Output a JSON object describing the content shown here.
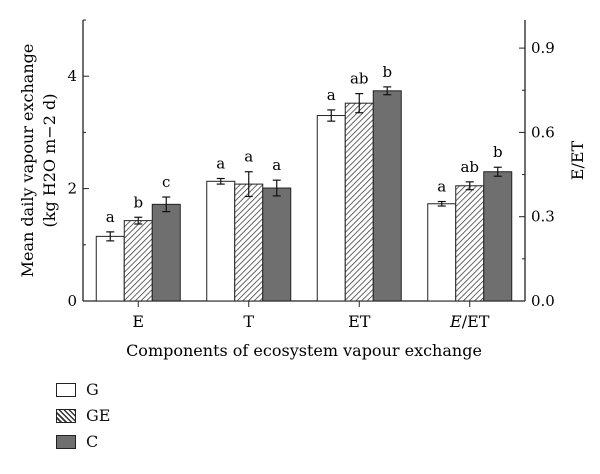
{
  "chart_data": {
    "type": "bar",
    "categories": [
      "E",
      "T",
      "ET",
      "E/ET"
    ],
    "category_italic_part": {
      "E/ET": "E"
    },
    "series": [
      {
        "name": "G",
        "fill": "white",
        "values": [
          1.15,
          2.13,
          3.3,
          1.73
        ],
        "errors": [
          0.08,
          0.05,
          0.1,
          0.04
        ],
        "letters": [
          "a",
          "a",
          "a",
          "a"
        ]
      },
      {
        "name": "GE",
        "fill": "hatched",
        "values": [
          1.43,
          2.08,
          3.52,
          2.05
        ],
        "errors": [
          0.06,
          0.22,
          0.17,
          0.07
        ],
        "letters": [
          "b",
          "a",
          "ab",
          "ab"
        ]
      },
      {
        "name": "C",
        "fill": "gray",
        "values": [
          1.72,
          2.01,
          3.74,
          2.3
        ],
        "errors": [
          0.13,
          0.14,
          0.07,
          0.08
        ],
        "letters": [
          "c",
          "a",
          "b",
          "b"
        ]
      }
    ],
    "ylabel_left_line1": "Mean daily vapour exchange",
    "ylabel_left_line2": "(kg H2O m−2 d)",
    "ylabel_right": "E/ET",
    "xlabel": "Components of ecosystem vapour exchange",
    "ylim": [
      0,
      5
    ],
    "yticks_left": [
      "0",
      "2",
      "4"
    ],
    "ylim_right": [
      0,
      1.0
    ],
    "yticks_right": [
      "0.0",
      "0.3",
      "0.6",
      "0.9"
    ],
    "colors": {
      "gray": "#6f6f6f",
      "white": "#ffffff",
      "hatch": "#333333",
      "axis": "#222222"
    }
  },
  "legend": {
    "items": [
      {
        "label": "G"
      },
      {
        "label": "GE"
      },
      {
        "label": "C"
      }
    ]
  }
}
